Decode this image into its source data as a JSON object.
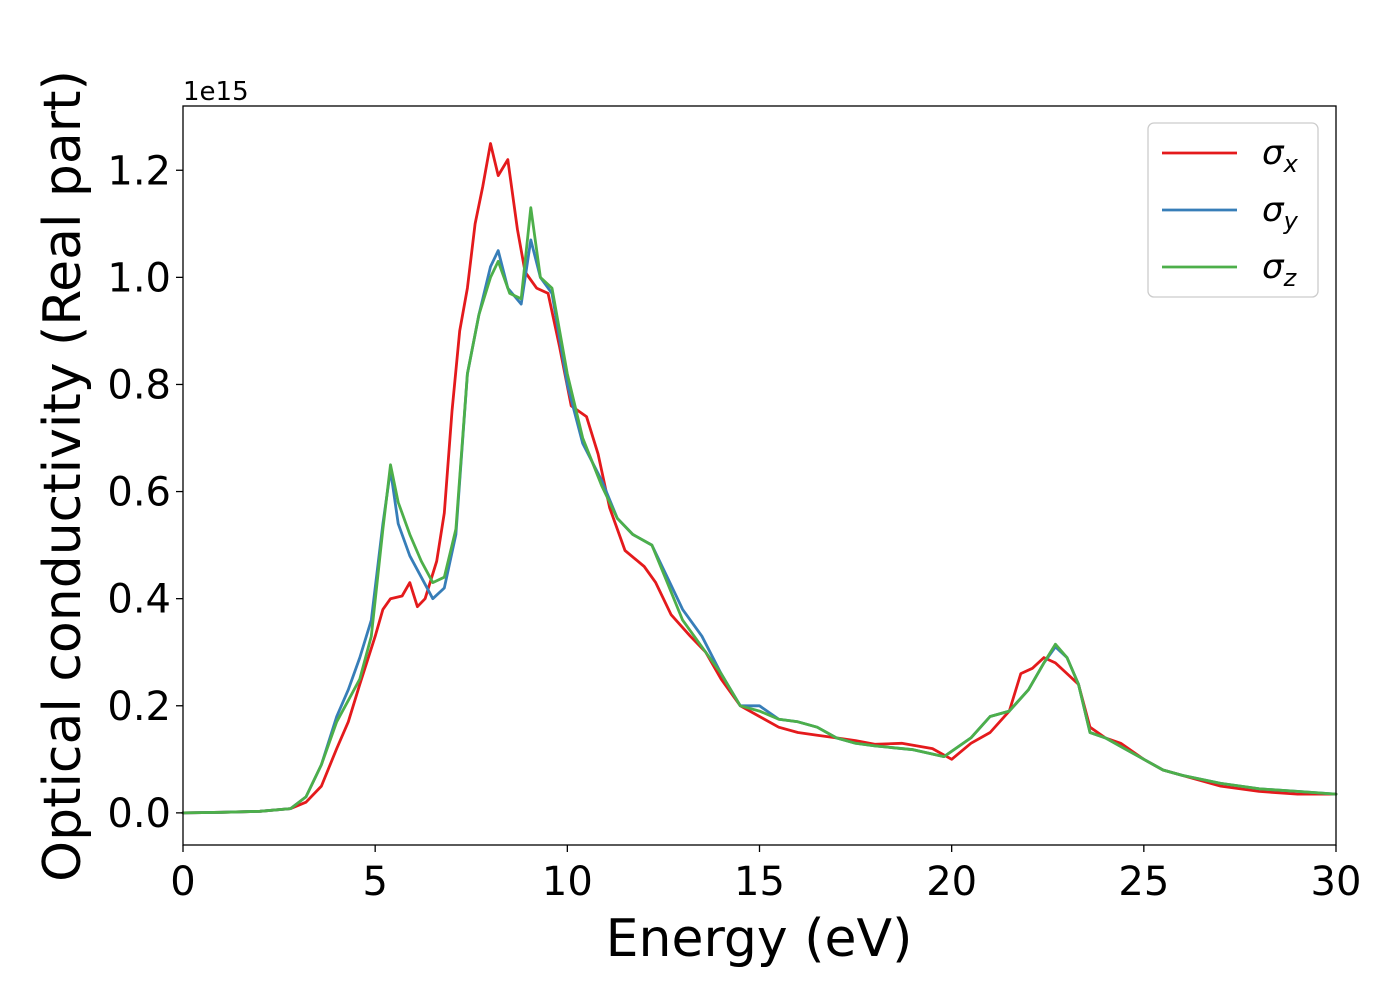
{
  "chart_data": {
    "type": "line",
    "title": "",
    "xlabel": "Energy (eV)",
    "ylabel": "Optical conductivity (Real part)",
    "y_offset_label": "1e15",
    "xlim": [
      0,
      30
    ],
    "ylim": [
      -0.06,
      1.32
    ],
    "xticks": [
      0,
      5,
      10,
      15,
      20,
      25,
      30
    ],
    "xtick_labels": [
      "0",
      "5",
      "10",
      "15",
      "20",
      "25",
      "30"
    ],
    "yticks": [
      0.0,
      0.2,
      0.4,
      0.6,
      0.8,
      1.0,
      1.2
    ],
    "ytick_labels": [
      "0.0",
      "0.2",
      "0.4",
      "0.6",
      "0.8",
      "1.0",
      "1.2"
    ],
    "grid": false,
    "legend_position": "top-right",
    "series": [
      {
        "name": "x",
        "color": "#e41a1c",
        "points": [
          [
            0,
            0
          ],
          [
            1,
            0.001
          ],
          [
            2,
            0.003
          ],
          [
            2.8,
            0.008
          ],
          [
            3.2,
            0.02
          ],
          [
            3.6,
            0.05
          ],
          [
            4,
            0.12
          ],
          [
            4.3,
            0.17
          ],
          [
            4.6,
            0.24
          ],
          [
            5,
            0.33
          ],
          [
            5.2,
            0.38
          ],
          [
            5.4,
            0.4
          ],
          [
            5.7,
            0.405
          ],
          [
            5.9,
            0.43
          ],
          [
            6.1,
            0.385
          ],
          [
            6.3,
            0.4
          ],
          [
            6.6,
            0.47
          ],
          [
            6.8,
            0.56
          ],
          [
            7,
            0.75
          ],
          [
            7.2,
            0.9
          ],
          [
            7.4,
            0.98
          ],
          [
            7.6,
            1.1
          ],
          [
            7.8,
            1.17
          ],
          [
            8,
            1.25
          ],
          [
            8.2,
            1.19
          ],
          [
            8.45,
            1.22
          ],
          [
            8.7,
            1.09
          ],
          [
            8.9,
            1.01
          ],
          [
            9.2,
            0.98
          ],
          [
            9.5,
            0.97
          ],
          [
            9.8,
            0.87
          ],
          [
            10.1,
            0.76
          ],
          [
            10.5,
            0.74
          ],
          [
            10.8,
            0.67
          ],
          [
            11.1,
            0.57
          ],
          [
            11.5,
            0.49
          ],
          [
            12,
            0.46
          ],
          [
            12.3,
            0.43
          ],
          [
            12.7,
            0.37
          ],
          [
            13.2,
            0.33
          ],
          [
            13.6,
            0.3
          ],
          [
            14,
            0.25
          ],
          [
            14.5,
            0.2
          ],
          [
            15,
            0.18
          ],
          [
            15.5,
            0.16
          ],
          [
            16,
            0.15
          ],
          [
            16.5,
            0.145
          ],
          [
            17,
            0.14
          ],
          [
            17.5,
            0.135
          ],
          [
            18,
            0.128
          ],
          [
            18.7,
            0.13
          ],
          [
            19.5,
            0.12
          ],
          [
            20,
            0.1
          ],
          [
            20.5,
            0.13
          ],
          [
            21,
            0.15
          ],
          [
            21.5,
            0.19
          ],
          [
            21.8,
            0.26
          ],
          [
            22.1,
            0.27
          ],
          [
            22.4,
            0.29
          ],
          [
            22.7,
            0.28
          ],
          [
            23,
            0.26
          ],
          [
            23.3,
            0.24
          ],
          [
            23.6,
            0.16
          ],
          [
            24,
            0.14
          ],
          [
            24.4,
            0.13
          ],
          [
            25,
            0.1
          ],
          [
            25.5,
            0.08
          ],
          [
            26,
            0.07
          ],
          [
            27,
            0.05
          ],
          [
            28,
            0.04
          ],
          [
            29,
            0.035
          ],
          [
            30,
            0.035
          ]
        ]
      },
      {
        "name": "y",
        "color": "#377eb8",
        "points": [
          [
            0,
            0
          ],
          [
            1,
            0.001
          ],
          [
            2,
            0.003
          ],
          [
            2.8,
            0.008
          ],
          [
            3.2,
            0.03
          ],
          [
            3.6,
            0.09
          ],
          [
            4,
            0.18
          ],
          [
            4.3,
            0.23
          ],
          [
            4.6,
            0.29
          ],
          [
            4.9,
            0.36
          ],
          [
            5.2,
            0.54
          ],
          [
            5.4,
            0.64
          ],
          [
            5.6,
            0.54
          ],
          [
            5.9,
            0.48
          ],
          [
            6.2,
            0.44
          ],
          [
            6.5,
            0.4
          ],
          [
            6.8,
            0.42
          ],
          [
            7.1,
            0.52
          ],
          [
            7.4,
            0.82
          ],
          [
            7.7,
            0.93
          ],
          [
            8,
            1.02
          ],
          [
            8.2,
            1.05
          ],
          [
            8.45,
            0.98
          ],
          [
            8.8,
            0.95
          ],
          [
            9.05,
            1.07
          ],
          [
            9.3,
            1.0
          ],
          [
            9.6,
            0.97
          ],
          [
            10,
            0.8
          ],
          [
            10.4,
            0.69
          ],
          [
            10.9,
            0.62
          ],
          [
            11.3,
            0.55
          ],
          [
            11.7,
            0.52
          ],
          [
            12.2,
            0.5
          ],
          [
            12.6,
            0.44
          ],
          [
            13,
            0.38
          ],
          [
            13.5,
            0.33
          ],
          [
            14,
            0.26
          ],
          [
            14.5,
            0.2
          ],
          [
            15,
            0.2
          ],
          [
            15.5,
            0.175
          ],
          [
            16,
            0.17
          ],
          [
            16.5,
            0.16
          ],
          [
            17,
            0.14
          ],
          [
            17.5,
            0.13
          ],
          [
            18,
            0.125
          ],
          [
            19,
            0.118
          ],
          [
            19.8,
            0.105
          ],
          [
            20.5,
            0.14
          ],
          [
            21,
            0.18
          ],
          [
            21.5,
            0.19
          ],
          [
            22,
            0.23
          ],
          [
            22.4,
            0.28
          ],
          [
            22.7,
            0.31
          ],
          [
            23,
            0.29
          ],
          [
            23.3,
            0.24
          ],
          [
            23.6,
            0.15
          ],
          [
            24,
            0.14
          ],
          [
            24.5,
            0.12
          ],
          [
            25,
            0.1
          ],
          [
            25.5,
            0.08
          ],
          [
            26,
            0.07
          ],
          [
            27,
            0.055
          ],
          [
            28,
            0.045
          ],
          [
            29,
            0.04
          ],
          [
            30,
            0.035
          ]
        ]
      },
      {
        "name": "z",
        "color": "#4daf4a",
        "points": [
          [
            0,
            0
          ],
          [
            1,
            0.001
          ],
          [
            2,
            0.003
          ],
          [
            2.8,
            0.008
          ],
          [
            3.2,
            0.03
          ],
          [
            3.6,
            0.09
          ],
          [
            4,
            0.17
          ],
          [
            4.3,
            0.21
          ],
          [
            4.6,
            0.25
          ],
          [
            4.9,
            0.33
          ],
          [
            5.2,
            0.53
          ],
          [
            5.4,
            0.65
          ],
          [
            5.6,
            0.58
          ],
          [
            5.9,
            0.52
          ],
          [
            6.2,
            0.47
          ],
          [
            6.5,
            0.43
          ],
          [
            6.8,
            0.44
          ],
          [
            7.1,
            0.53
          ],
          [
            7.4,
            0.82
          ],
          [
            7.7,
            0.93
          ],
          [
            8,
            1.0
          ],
          [
            8.2,
            1.03
          ],
          [
            8.5,
            0.97
          ],
          [
            8.8,
            0.96
          ],
          [
            9.05,
            1.13
          ],
          [
            9.3,
            1.0
          ],
          [
            9.6,
            0.98
          ],
          [
            10,
            0.82
          ],
          [
            10.4,
            0.7
          ],
          [
            10.9,
            0.61
          ],
          [
            11.3,
            0.55
          ],
          [
            11.7,
            0.52
          ],
          [
            12.2,
            0.5
          ],
          [
            12.6,
            0.43
          ],
          [
            13,
            0.36
          ],
          [
            13.5,
            0.31
          ],
          [
            14,
            0.26
          ],
          [
            14.5,
            0.2
          ],
          [
            15,
            0.19
          ],
          [
            15.5,
            0.175
          ],
          [
            16,
            0.17
          ],
          [
            16.5,
            0.16
          ],
          [
            17,
            0.14
          ],
          [
            17.5,
            0.13
          ],
          [
            18,
            0.125
          ],
          [
            19,
            0.118
          ],
          [
            19.8,
            0.105
          ],
          [
            20.5,
            0.14
          ],
          [
            21,
            0.18
          ],
          [
            21.5,
            0.19
          ],
          [
            22,
            0.23
          ],
          [
            22.4,
            0.28
          ],
          [
            22.7,
            0.315
          ],
          [
            23,
            0.29
          ],
          [
            23.3,
            0.24
          ],
          [
            23.6,
            0.15
          ],
          [
            24,
            0.14
          ],
          [
            24.5,
            0.12
          ],
          [
            25,
            0.1
          ],
          [
            25.5,
            0.08
          ],
          [
            26,
            0.07
          ],
          [
            27,
            0.055
          ],
          [
            28,
            0.045
          ],
          [
            29,
            0.04
          ],
          [
            30,
            0.035
          ]
        ]
      }
    ]
  }
}
